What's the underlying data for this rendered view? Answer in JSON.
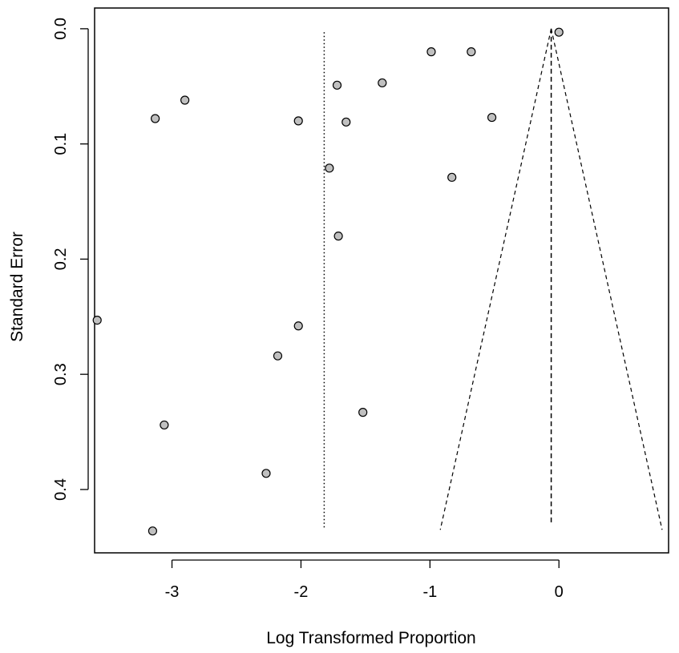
{
  "chart_data": {
    "type": "scatter",
    "subtype": "funnel-plot",
    "title": "",
    "xlabel": "Log Transformed Proportion",
    "ylabel": "Standard Error",
    "xlim": [
      -3.6,
      0.85
    ],
    "ylim": [
      0.455,
      -0.018
    ],
    "y_axis_inverted": true,
    "x_ticks": [
      -3,
      -2,
      -1,
      0
    ],
    "x_tick_labels": [
      "-3",
      "-2",
      "-1",
      "0"
    ],
    "y_ticks": [
      0.0,
      0.1,
      0.2,
      0.3,
      0.4
    ],
    "y_tick_labels": [
      "0.0",
      "0.1",
      "0.2",
      "0.3",
      "0.4"
    ],
    "grid": false,
    "legend": "none",
    "colors": {
      "point_fill": "#c0c0c0",
      "point_stroke": "#000000",
      "line": "#000000"
    },
    "points": [
      {
        "x": 0.0,
        "y": 0.003
      },
      {
        "x": -0.99,
        "y": 0.02
      },
      {
        "x": -0.68,
        "y": 0.02
      },
      {
        "x": -1.37,
        "y": 0.047
      },
      {
        "x": -1.72,
        "y": 0.049
      },
      {
        "x": -2.9,
        "y": 0.062
      },
      {
        "x": -3.13,
        "y": 0.078
      },
      {
        "x": -2.02,
        "y": 0.08
      },
      {
        "x": -1.65,
        "y": 0.081
      },
      {
        "x": -0.52,
        "y": 0.077
      },
      {
        "x": -1.78,
        "y": 0.121
      },
      {
        "x": -0.83,
        "y": 0.129
      },
      {
        "x": -1.71,
        "y": 0.18
      },
      {
        "x": -3.58,
        "y": 0.253
      },
      {
        "x": -2.02,
        "y": 0.258
      },
      {
        "x": -2.18,
        "y": 0.284
      },
      {
        "x": -1.52,
        "y": 0.333
      },
      {
        "x": -3.06,
        "y": 0.344
      },
      {
        "x": -2.27,
        "y": 0.386
      },
      {
        "x": -3.15,
        "y": 0.436
      }
    ],
    "reference_lines": {
      "fixed_effect_estimate": {
        "x": -0.06,
        "y_range": [
          0.0,
          0.43
        ],
        "style": "dashed"
      },
      "random_effect_estimate": {
        "x": -1.82,
        "y_range": [
          0.003,
          0.435
        ],
        "style": "dotted"
      },
      "funnel_left": {
        "from": [
          -0.06,
          0.0
        ],
        "to": [
          -0.92,
          0.435
        ],
        "style": "dashed"
      },
      "funnel_right": {
        "from": [
          -0.06,
          0.0
        ],
        "to": [
          0.8,
          0.435
        ],
        "style": "dashed"
      }
    }
  }
}
